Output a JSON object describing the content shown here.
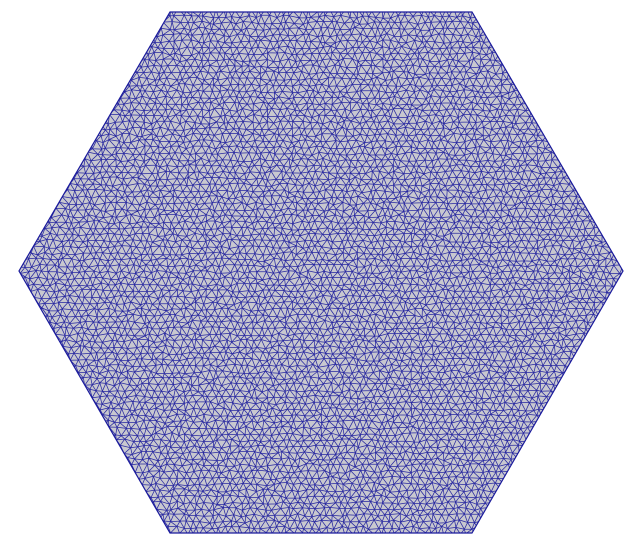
{
  "scene": {
    "background_color": "#ffffff",
    "shape": "hexagon",
    "surface": {
      "fill_color": "#c8c8cf",
      "edge_color": "#1a1a9c",
      "representation": "surface-with-edges",
      "element_type": "triangle"
    }
  }
}
